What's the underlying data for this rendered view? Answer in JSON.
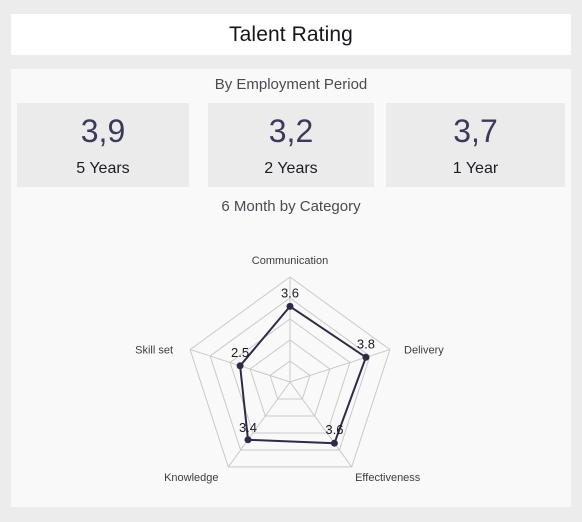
{
  "header": {
    "title": "Talent Rating"
  },
  "employment": {
    "title": "By Employment Period",
    "kpis": [
      {
        "value": "3,9",
        "label": "5 Years"
      },
      {
        "value": "3,2",
        "label": "2 Years"
      },
      {
        "value": "3,7",
        "label": "1 Year"
      }
    ]
  },
  "category": {
    "title": "6 Month by Category"
  },
  "chart_data": {
    "type": "radar",
    "categories": [
      "Communication",
      "Delivery",
      "Effectiveness",
      "Knowledge",
      "Skill set"
    ],
    "values": [
      3.6,
      3.8,
      3.6,
      3.4,
      2.5
    ],
    "data_labels": [
      "3.6",
      "3.8",
      "3.6",
      "3.4",
      "2.5"
    ],
    "range": [
      0,
      5
    ],
    "grid_levels": 5,
    "colors": {
      "series": "#2d2b45",
      "grid": "#c9c9c9"
    }
  }
}
